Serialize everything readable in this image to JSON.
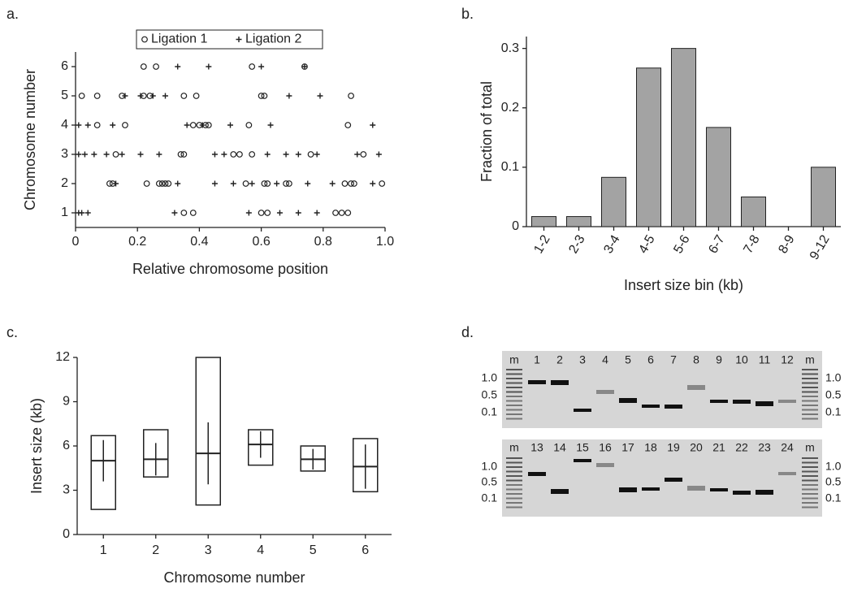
{
  "chart_data": [
    {
      "type": "scatter",
      "label": "a.",
      "xlabel": "Relative chromosome position",
      "ylabel": "Chromosome number",
      "xlim": [
        0,
        1
      ],
      "xticks": [
        0,
        0.2,
        0.4,
        0.6,
        0.8,
        {
          "value": 1,
          "label": "1.0"
        }
      ],
      "ylim": [
        0.5,
        6.5
      ],
      "yticks": [
        1,
        2,
        3,
        4,
        5,
        6
      ],
      "legend": "top",
      "series": [
        {
          "name": "Ligation 1",
          "marker": "circle",
          "color": "#222222",
          "x": [
            0.22,
            0.26,
            0.57,
            0.74,
            0.02,
            0.07,
            0.15,
            0.22,
            0.24,
            0.35,
            0.39,
            0.6,
            0.61,
            0.89,
            0.07,
            0.16,
            0.38,
            0.4,
            0.42,
            0.43,
            0.56,
            0.88,
            0.13,
            0.34,
            0.35,
            0.51,
            0.53,
            0.57,
            0.76,
            0.93,
            0.11,
            0.12,
            0.23,
            0.27,
            0.28,
            0.29,
            0.3,
            0.55,
            0.61,
            0.62,
            0.68,
            0.69,
            0.87,
            0.89,
            0.9,
            0.99,
            0.35,
            0.38,
            0.6,
            0.62,
            0.84,
            0.86,
            0.88
          ],
          "values": [
            6,
            6,
            6,
            6,
            5,
            5,
            5,
            5,
            5,
            5,
            5,
            5,
            5,
            5,
            4,
            4,
            4,
            4,
            4,
            4,
            4,
            4,
            3,
            3,
            3,
            3,
            3,
            3,
            3,
            3,
            2,
            2,
            2,
            2,
            2,
            2,
            2,
            2,
            2,
            2,
            2,
            2,
            2,
            2,
            2,
            2,
            1,
            1,
            1,
            1,
            1,
            1,
            1
          ]
        },
        {
          "name": "Ligation 2",
          "marker": "plus",
          "color": "#222222",
          "x": [
            0.33,
            0.43,
            0.6,
            0.74,
            0.16,
            0.21,
            0.25,
            0.29,
            0.69,
            0.79,
            0.01,
            0.04,
            0.12,
            0.36,
            0.41,
            0.5,
            0.63,
            0.96,
            0.01,
            0.03,
            0.06,
            0.1,
            0.15,
            0.21,
            0.27,
            0.45,
            0.48,
            0.62,
            0.68,
            0.72,
            0.78,
            0.91,
            0.98,
            0.13,
            0.33,
            0.45,
            0.51,
            0.57,
            0.65,
            0.75,
            0.83,
            0.96,
            0.01,
            0.02,
            0.04,
            0.32,
            0.56,
            0.66,
            0.72,
            0.78
          ],
          "values": [
            6,
            6,
            6,
            6,
            5,
            5,
            5,
            5,
            5,
            5,
            4,
            4,
            4,
            4,
            4,
            4,
            4,
            4,
            3,
            3,
            3,
            3,
            3,
            3,
            3,
            3,
            3,
            3,
            3,
            3,
            3,
            3,
            3,
            2,
            2,
            2,
            2,
            2,
            2,
            2,
            2,
            2,
            1,
            1,
            1,
            1,
            1,
            1,
            1,
            1
          ]
        }
      ]
    },
    {
      "type": "bar",
      "label": "b.",
      "xlabel": "Insert size bin (kb)",
      "ylabel": "Fraction of total",
      "categories": [
        "1-2",
        "2-3",
        "3-4",
        "4-5",
        "5-6",
        "6-7",
        "7-8",
        "8-9",
        "9-12"
      ],
      "values": [
        0.017,
        0.017,
        0.083,
        0.267,
        0.3,
        0.167,
        0.05,
        0,
        0.1
      ],
      "color": "#a3a3a3",
      "ylim": [
        0,
        0.32
      ],
      "yticks": [
        0,
        0.1,
        0.2,
        0.3
      ]
    },
    {
      "type": "box",
      "label": "c.",
      "xlabel": "Chromosome number",
      "ylabel": "Insert size (kb)",
      "categories": [
        "1",
        "2",
        "3",
        "4",
        "5",
        "6"
      ],
      "min": [
        1.7,
        3.9,
        2.0,
        4.7,
        4.3,
        2.9
      ],
      "max": [
        6.7,
        7.1,
        12.0,
        7.1,
        6.0,
        6.5
      ],
      "mean": [
        5.0,
        5.1,
        5.5,
        6.1,
        5.1,
        4.6
      ],
      "sd": [
        1.4,
        1.1,
        2.1,
        0.9,
        0.7,
        1.5
      ],
      "ylim": [
        0,
        12
      ],
      "yticks": [
        0,
        3,
        6,
        9,
        12
      ]
    }
  ],
  "gel": {
    "label": "d.",
    "top_lanes": [
      "m",
      "1",
      "2",
      "3",
      "4",
      "5",
      "6",
      "7",
      "8",
      "9",
      "10",
      "11",
      "12",
      "m"
    ],
    "bottom_lanes": [
      "m",
      "13",
      "14",
      "15",
      "16",
      "17",
      "18",
      "19",
      "20",
      "21",
      "22",
      "23",
      "24",
      "m"
    ],
    "size_labels": [
      "1.0",
      "0.5",
      "0.1"
    ]
  }
}
